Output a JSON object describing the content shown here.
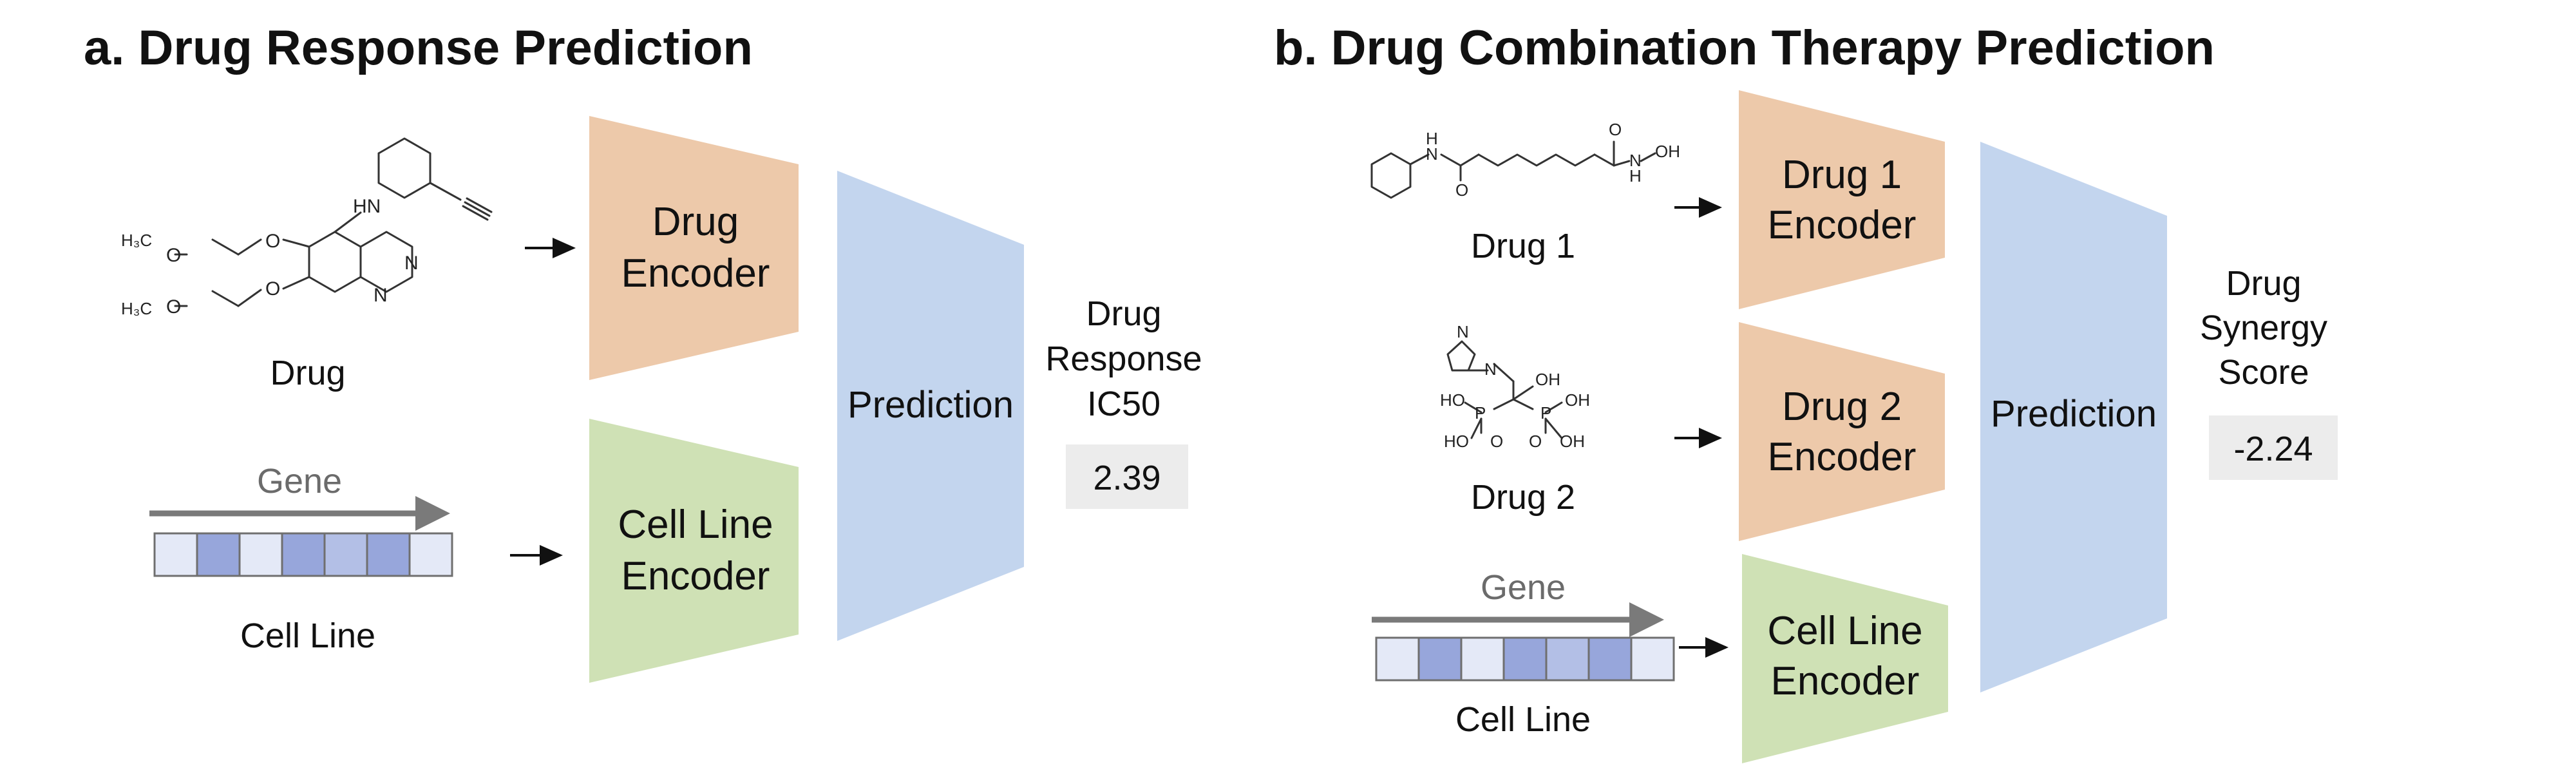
{
  "colors": {
    "drug_encoder": "#edc9aa",
    "cell_encoder": "#cfe1b5",
    "prediction": "#c3d5ee",
    "cell_dark": "#97a6db",
    "cell_mid": "#b3bfe6",
    "cell_light": "#e4e9f7",
    "value_box": "#ececec"
  },
  "panel_a": {
    "title": "a. Drug Response Prediction",
    "drug_caption": "Drug",
    "drug_encoder": [
      "Drug",
      "Encoder"
    ],
    "gene_label": "Gene",
    "cell_caption": "Cell Line",
    "cell_encoder": [
      "Cell Line",
      "Encoder"
    ],
    "prediction": "Prediction",
    "output_label": [
      "Drug",
      "Response",
      "IC50"
    ],
    "output_value": "2.39",
    "molecule_atoms": {
      "hn": "HN",
      "h3c_1": "H₃C",
      "o_1": "O",
      "o_2": "O",
      "h3c_2": "H₃C",
      "o_3": "O",
      "o_4": "O",
      "n_1": "N",
      "n_2": "N"
    }
  },
  "panel_b": {
    "title": "b. Drug Combination Therapy Prediction",
    "drug1_caption": "Drug 1",
    "drug1_encoder": [
      "Drug 1",
      "Encoder"
    ],
    "drug2_caption": "Drug 2",
    "drug2_encoder": [
      "Drug 2",
      "Encoder"
    ],
    "gene_label": "Gene",
    "cell_caption": "Cell Line",
    "cell_encoder": [
      "Cell Line",
      "Encoder"
    ],
    "prediction": "Prediction",
    "output_label": [
      "Drug",
      "Synergy",
      "Score"
    ],
    "output_value": "-2.24",
    "molecule1_atoms": {
      "h": "H",
      "n": "N",
      "o1": "O",
      "o2": "O",
      "oh": "OH",
      "nh": "N",
      "hh": "H"
    },
    "molecule2_atoms": {
      "n1": "N",
      "n2": "N",
      "oh": "OH",
      "ho1": "HO",
      "p1": "P",
      "p2": "P",
      "oh2": "OH",
      "ho2": "HO",
      "o1": "O",
      "o2": "O",
      "oh3": "OH"
    }
  }
}
